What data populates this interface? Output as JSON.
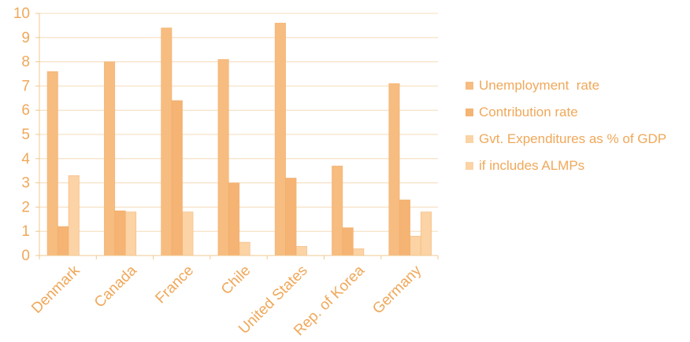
{
  "chart_data": {
    "type": "bar",
    "categories": [
      "Denmark",
      "Canada",
      "France",
      "Chile",
      "United States",
      "Rep. of Korea",
      "Germany"
    ],
    "series": [
      {
        "name": "Unemployment  rate",
        "values": [
          7.6,
          8.0,
          9.4,
          8.1,
          9.6,
          3.7,
          7.1
        ],
        "color": "#f6bc80"
      },
      {
        "name": "Contribution rate",
        "values": [
          1.2,
          1.85,
          6.4,
          3.0,
          3.2,
          1.15,
          2.3
        ],
        "color": "#f5b374"
      },
      {
        "name": "Gvt. Expenditures as % of GDP",
        "values": [
          3.3,
          1.8,
          1.8,
          0.55,
          0.38,
          0.28,
          0.8
        ],
        "color": "#fbd3a5"
      },
      {
        "name": "if includes ALMPs",
        "values": [
          null,
          null,
          null,
          null,
          null,
          null,
          1.8
        ],
        "color": "#fbd3a5"
      }
    ],
    "yticks": [
      "0",
      "1",
      "2",
      "3",
      "4",
      "5",
      "6",
      "7",
      "8",
      "9",
      "10"
    ],
    "ylim": [
      0,
      10
    ],
    "grid": true,
    "legend_position": "right",
    "axis_color": "#f0c890"
  }
}
